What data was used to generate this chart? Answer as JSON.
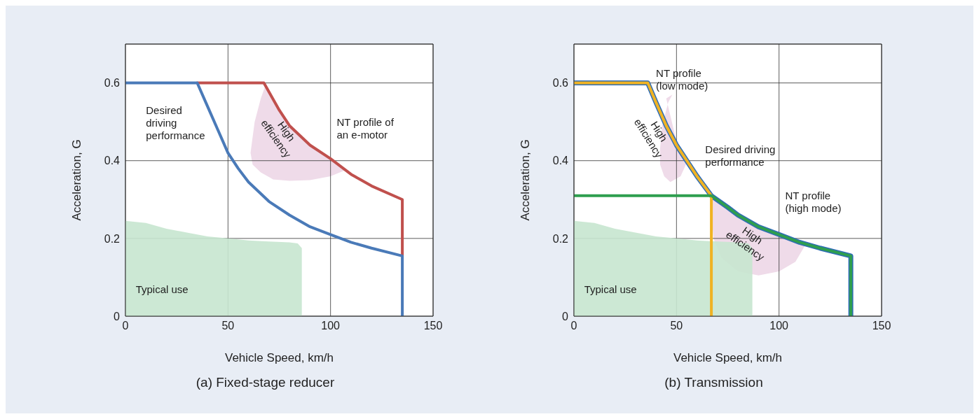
{
  "chart_data": [
    {
      "type": "line",
      "title": "(a) Fixed-stage reducer",
      "xlabel": "Vehicle Speed, km/h",
      "ylabel": "Acceleration, G",
      "xlim": [
        0,
        150
      ],
      "xticks": [
        0,
        50,
        100,
        150
      ],
      "ylim": [
        0,
        0.7
      ],
      "yticks": [
        0,
        0.2,
        0.4,
        0.6
      ],
      "grid": true,
      "series": [
        {
          "type": "area",
          "color": "#c6e5cf",
          "x": [
            0,
            10,
            20,
            30,
            40,
            50,
            60,
            70,
            80,
            84,
            86,
            86
          ],
          "values": [
            0.245,
            0.24,
            0.225,
            0.215,
            0.205,
            0.2,
            0.195,
            0.192,
            0.19,
            0.187,
            0.175,
            0
          ]
        },
        {
          "color": "#c0504d",
          "x": [
            35,
            67.5,
            75,
            80,
            90,
            100,
            110,
            120,
            135,
            135
          ],
          "values": [
            0.6,
            0.6,
            0.53,
            0.49,
            0.44,
            0.405,
            0.365,
            0.335,
            0.3,
            0.155
          ]
        },
        {
          "color": "#4a7ab8",
          "x": [
            0,
            35,
            40,
            45,
            50,
            55,
            60,
            70,
            80,
            90,
            100,
            110,
            120,
            135,
            135
          ],
          "values": [
            0.6,
            0.6,
            0.54,
            0.48,
            0.42,
            0.38,
            0.345,
            0.295,
            0.26,
            0.23,
            0.21,
            0.19,
            0.175,
            0.155,
            0
          ]
        }
      ],
      "annotations": [
        "Desired\ndriving\nperformance",
        "High\nefficiency",
        "NT profile of\nan e-motor",
        "Typical use"
      ]
    },
    {
      "type": "line",
      "title": "(b) Transmission",
      "xlabel": "Vehicle Speed, km/h",
      "ylabel": "Acceleration, G",
      "xlim": [
        0,
        150
      ],
      "xticks": [
        0,
        50,
        100,
        150
      ],
      "ylim": [
        0,
        0.7
      ],
      "yticks": [
        0,
        0.2,
        0.4,
        0.6
      ],
      "grid": true,
      "series": [
        {
          "type": "area",
          "color": "#c6e5cf",
          "x": [
            0,
            10,
            20,
            30,
            40,
            50,
            60,
            70,
            80,
            85,
            87,
            87
          ],
          "values": [
            0.245,
            0.24,
            0.225,
            0.215,
            0.205,
            0.2,
            0.195,
            0.192,
            0.19,
            0.187,
            0.175,
            0
          ]
        },
        {
          "color": "#2f6db5",
          "x": [
            0,
            36,
            40,
            45,
            50,
            55,
            60,
            67,
            75,
            80,
            90,
            100,
            110,
            120,
            135,
            135
          ],
          "values": [
            0.6,
            0.6,
            0.55,
            0.49,
            0.44,
            0.4,
            0.36,
            0.31,
            0.28,
            0.26,
            0.23,
            0.21,
            0.19,
            0.175,
            0.155,
            0
          ]
        },
        {
          "color": "#f0b323",
          "x": [
            0,
            36,
            40,
            45,
            50,
            55,
            60,
            67,
            67
          ],
          "values": [
            0.6,
            0.6,
            0.55,
            0.49,
            0.44,
            0.4,
            0.36,
            0.31,
            0
          ]
        },
        {
          "color": "#2e9e4f",
          "x": [
            0,
            67,
            75,
            80,
            90,
            100,
            110,
            120,
            135,
            135
          ],
          "values": [
            0.31,
            0.31,
            0.28,
            0.26,
            0.23,
            0.21,
            0.19,
            0.175,
            0.155,
            0
          ]
        }
      ],
      "annotations": [
        "NT profile\n(low mode)",
        "High\nefficiency",
        "Desired driving\nperformance",
        "NT profile\n(high mode)",
        "High\nefficiency",
        "Typical use"
      ]
    }
  ]
}
